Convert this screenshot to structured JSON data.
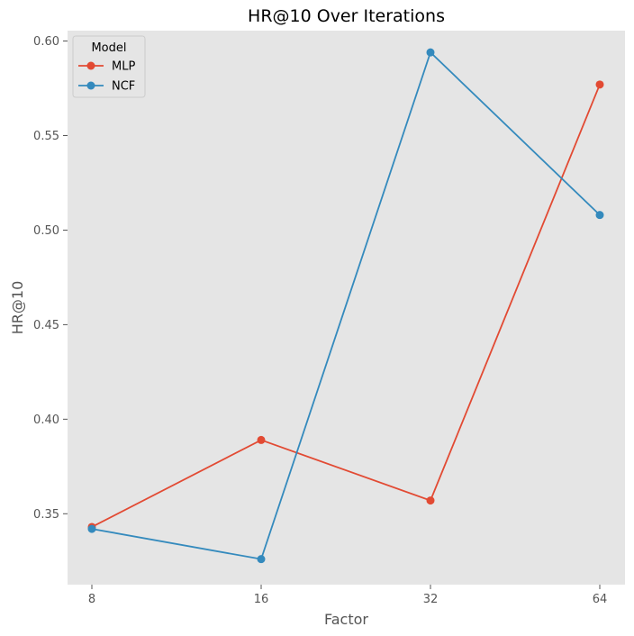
{
  "chart_data": {
    "type": "line",
    "title": "HR@10 Over Iterations",
    "xlabel": "Factor",
    "ylabel": "HR@10",
    "categories": [
      "8",
      "16",
      "32",
      "64"
    ],
    "yticks": [
      "0.35",
      "0.40",
      "0.45",
      "0.50",
      "0.55",
      "0.60"
    ],
    "ylim": [
      0.3125,
      0.6055
    ],
    "grid": false,
    "legend": {
      "title": "Model",
      "placement": "top-left"
    },
    "series": [
      {
        "name": "MLP",
        "color": "#E24A33",
        "values": [
          0.343,
          0.389,
          0.357,
          0.577
        ]
      },
      {
        "name": "NCF",
        "color": "#348ABD",
        "values": [
          0.342,
          0.326,
          0.594,
          0.508
        ]
      }
    ]
  }
}
